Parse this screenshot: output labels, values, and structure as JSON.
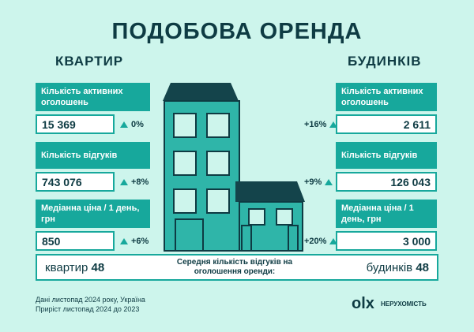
{
  "title": "ПОДОБОВА ОРЕНДА",
  "left": {
    "heading": "КВАРТИР",
    "cards": [
      {
        "label": "Кількість активних оголошень",
        "value": "15 369",
        "change": "0%"
      },
      {
        "label": "Кількість відгуків",
        "value": "743 076",
        "change": "+8%"
      },
      {
        "label": "Медіанна ціна / 1 день, грн",
        "value": "850",
        "change": "+6%"
      }
    ]
  },
  "right": {
    "heading": "БУДИНКІВ",
    "cards": [
      {
        "label": "Кількість активних оголошень",
        "value": "2 611",
        "change": "+16%"
      },
      {
        "label": "Кількість відгуків",
        "value": "126 043",
        "change": "+9%"
      },
      {
        "label": "Медіанна ціна / 1 день, грн",
        "value": "3 000",
        "change": "+20%"
      }
    ]
  },
  "summary": {
    "left_label": "квартир",
    "left_value": "48",
    "caption": "Середня кількість відгуків на оголошення оренди:",
    "right_label": "будинків",
    "right_value": "48"
  },
  "footer": {
    "notes": [
      "Дані листопад 2024 року, Україна",
      "Приріст листопад 2024 до 2023"
    ],
    "logo": "olx",
    "logo_sub": "НЕРУХОМІСТЬ"
  }
}
